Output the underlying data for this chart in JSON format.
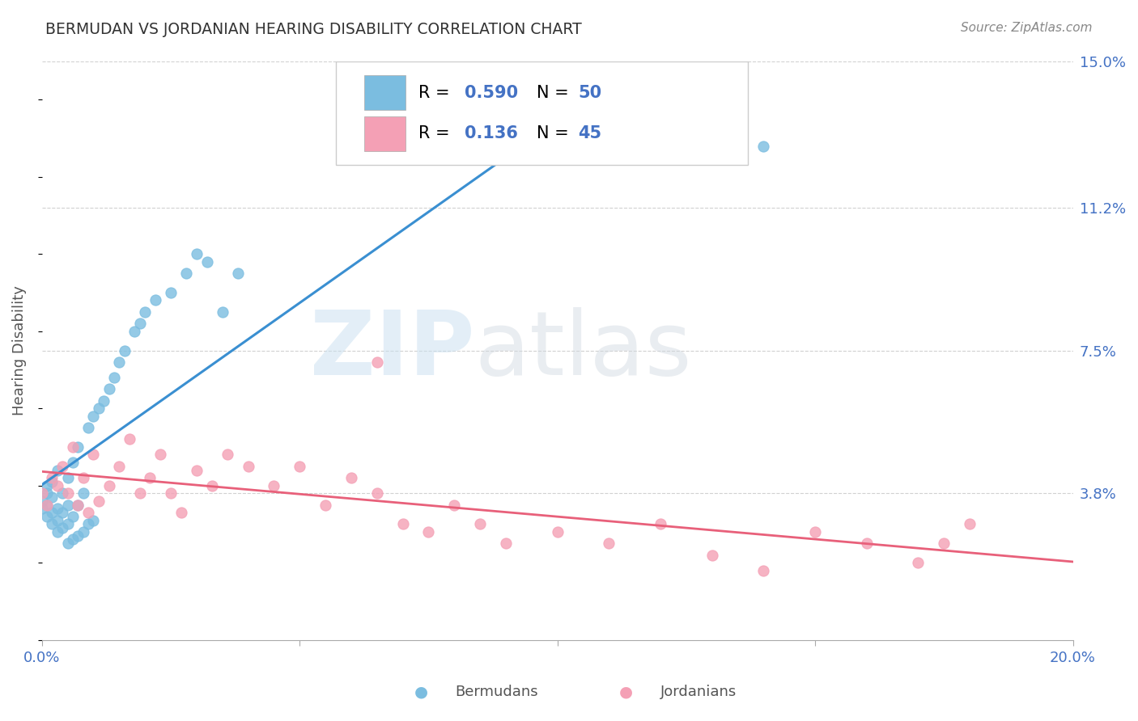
{
  "title": "BERMUDAN VS JORDANIAN HEARING DISABILITY CORRELATION CHART",
  "source": "Source: ZipAtlas.com",
  "ylabel": "Hearing Disability",
  "xlim": [
    0.0,
    0.2
  ],
  "ylim": [
    0.0,
    0.15
  ],
  "ytick_right_vals": [
    0.038,
    0.075,
    0.112,
    0.15
  ],
  "ytick_right_labels": [
    "3.8%",
    "7.5%",
    "11.2%",
    "15.0%"
  ],
  "bermudan_color": "#7bbde0",
  "jordanian_color": "#f4a0b5",
  "bermudan_line_color": "#3a8fd1",
  "jordanian_line_color": "#e8607a",
  "dashed_line_color": "#b0bec5",
  "legend_R_bermuda": "0.590",
  "legend_N_bermuda": "50",
  "legend_R_jordan": "0.136",
  "legend_N_jordan": "45",
  "background_color": "#ffffff",
  "grid_color": "#cccccc",
  "title_color": "#333333",
  "axis_label_color": "#555555",
  "right_tick_color": "#4472C4",
  "watermark_zip": "ZIP",
  "watermark_atlas": "atlas",
  "bermudans_x": [
    0.0,
    0.0,
    0.001,
    0.001,
    0.001,
    0.001,
    0.002,
    0.002,
    0.002,
    0.002,
    0.003,
    0.003,
    0.003,
    0.003,
    0.004,
    0.004,
    0.004,
    0.005,
    0.005,
    0.005,
    0.005,
    0.006,
    0.006,
    0.006,
    0.007,
    0.007,
    0.007,
    0.008,
    0.008,
    0.009,
    0.009,
    0.01,
    0.01,
    0.011,
    0.012,
    0.013,
    0.014,
    0.015,
    0.016,
    0.018,
    0.019,
    0.02,
    0.022,
    0.025,
    0.028,
    0.03,
    0.032,
    0.035,
    0.038,
    0.14
  ],
  "bermudans_y": [
    0.034,
    0.036,
    0.032,
    0.035,
    0.038,
    0.04,
    0.03,
    0.033,
    0.037,
    0.041,
    0.028,
    0.031,
    0.034,
    0.044,
    0.029,
    0.033,
    0.038,
    0.025,
    0.03,
    0.035,
    0.042,
    0.026,
    0.032,
    0.046,
    0.027,
    0.035,
    0.05,
    0.028,
    0.038,
    0.03,
    0.055,
    0.031,
    0.058,
    0.06,
    0.062,
    0.065,
    0.068,
    0.072,
    0.075,
    0.08,
    0.082,
    0.085,
    0.088,
    0.09,
    0.095,
    0.1,
    0.098,
    0.085,
    0.095,
    0.128
  ],
  "jordanians_x": [
    0.0,
    0.001,
    0.002,
    0.003,
    0.004,
    0.005,
    0.006,
    0.007,
    0.008,
    0.009,
    0.01,
    0.011,
    0.013,
    0.015,
    0.017,
    0.019,
    0.021,
    0.023,
    0.025,
    0.027,
    0.03,
    0.033,
    0.036,
    0.04,
    0.045,
    0.05,
    0.055,
    0.06,
    0.065,
    0.07,
    0.075,
    0.08,
    0.085,
    0.09,
    0.1,
    0.11,
    0.12,
    0.13,
    0.14,
    0.15,
    0.16,
    0.17,
    0.175,
    0.18,
    0.065
  ],
  "jordanians_y": [
    0.038,
    0.035,
    0.042,
    0.04,
    0.045,
    0.038,
    0.05,
    0.035,
    0.042,
    0.033,
    0.048,
    0.036,
    0.04,
    0.045,
    0.052,
    0.038,
    0.042,
    0.048,
    0.038,
    0.033,
    0.044,
    0.04,
    0.048,
    0.045,
    0.04,
    0.045,
    0.035,
    0.042,
    0.038,
    0.03,
    0.028,
    0.035,
    0.03,
    0.025,
    0.028,
    0.025,
    0.03,
    0.022,
    0.018,
    0.028,
    0.025,
    0.02,
    0.025,
    0.03,
    0.072
  ]
}
